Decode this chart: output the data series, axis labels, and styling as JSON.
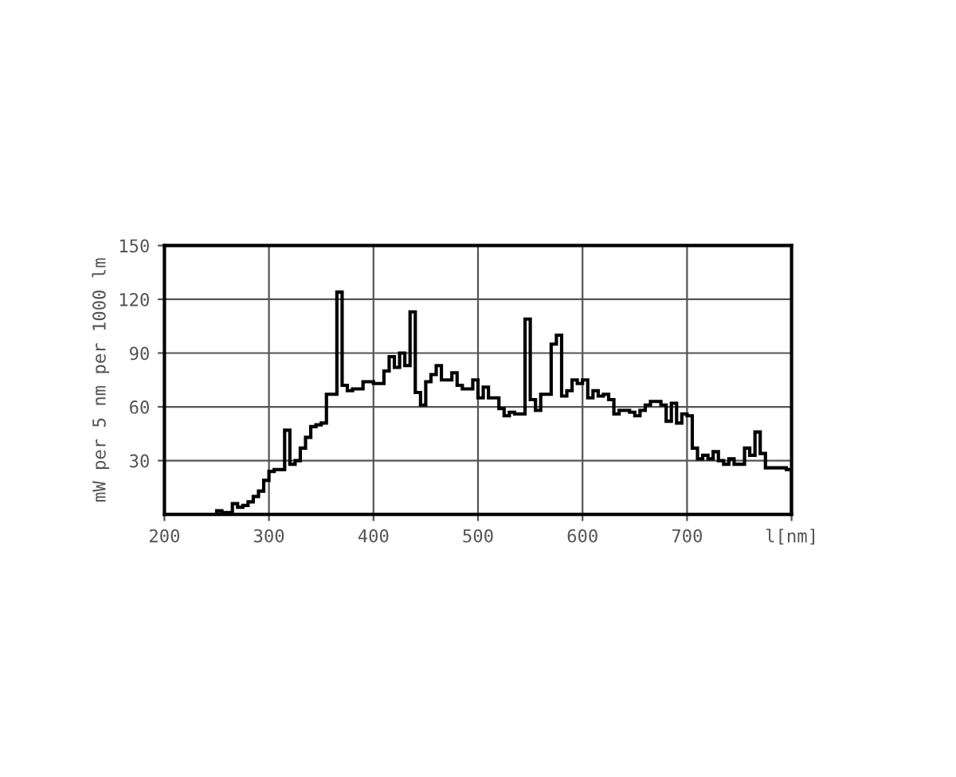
{
  "chart_data": {
    "type": "histogram",
    "ylabel": "mW per 5 nm per 1000 lm",
    "bins": [
      250,
      255,
      260,
      265,
      270,
      275,
      280,
      285,
      290,
      295,
      300,
      305,
      310,
      315,
      320,
      325,
      330,
      335,
      340,
      345,
      350,
      355,
      360,
      365,
      370,
      375,
      380,
      385,
      390,
      395,
      400,
      405,
      410,
      415,
      420,
      425,
      430,
      435,
      440,
      445,
      450,
      455,
      460,
      465,
      470,
      475,
      480,
      485,
      490,
      495,
      500,
      505,
      510,
      515,
      520,
      525,
      530,
      535,
      540,
      545,
      550,
      555,
      560,
      565,
      570,
      575,
      580,
      585,
      590,
      595,
      600,
      605,
      610,
      615,
      620,
      625,
      630,
      635,
      640,
      645,
      650,
      655,
      660,
      665,
      670,
      675,
      680,
      685,
      690,
      695,
      700,
      705,
      710,
      715,
      720,
      725,
      730,
      735,
      740,
      745,
      750,
      755,
      760,
      765,
      770,
      775,
      780,
      785,
      790,
      795,
      800
    ],
    "values": [
      2,
      1,
      1,
      6,
      4,
      5,
      7,
      10,
      13,
      19,
      24,
      25,
      25,
      47,
      28,
      30,
      37,
      43,
      49,
      50,
      51,
      67,
      67,
      124,
      72,
      69,
      70,
      70,
      74,
      74,
      73,
      73,
      80,
      88,
      82,
      90,
      83,
      113,
      68,
      61,
      74,
      78,
      83,
      75,
      75,
      79,
      72,
      70,
      70,
      75,
      65,
      71,
      65,
      65,
      59,
      55,
      57,
      56,
      56,
      109,
      64,
      58,
      67,
      67,
      95,
      100,
      66,
      69,
      75,
      73,
      75,
      65,
      69,
      66,
      67,
      64,
      56,
      58,
      58,
      57,
      55,
      58,
      61,
      63,
      63,
      61,
      52,
      62,
      51,
      56,
      55,
      37,
      31,
      33,
      31,
      35,
      30,
      28,
      31,
      28,
      28,
      37,
      33,
      46,
      34,
      26,
      26,
      26,
      26,
      25
    ],
    "color": "#000000",
    "xlim": [
      200,
      800
    ],
    "ylim": [
      0,
      150
    ],
    "xticks": [
      200,
      300,
      400,
      500,
      600,
      700,
      {
        "value": 800,
        "label": "l[nm]"
      }
    ],
    "yticks": [
      30,
      60,
      90,
      120,
      150
    ],
    "grid": true
  }
}
